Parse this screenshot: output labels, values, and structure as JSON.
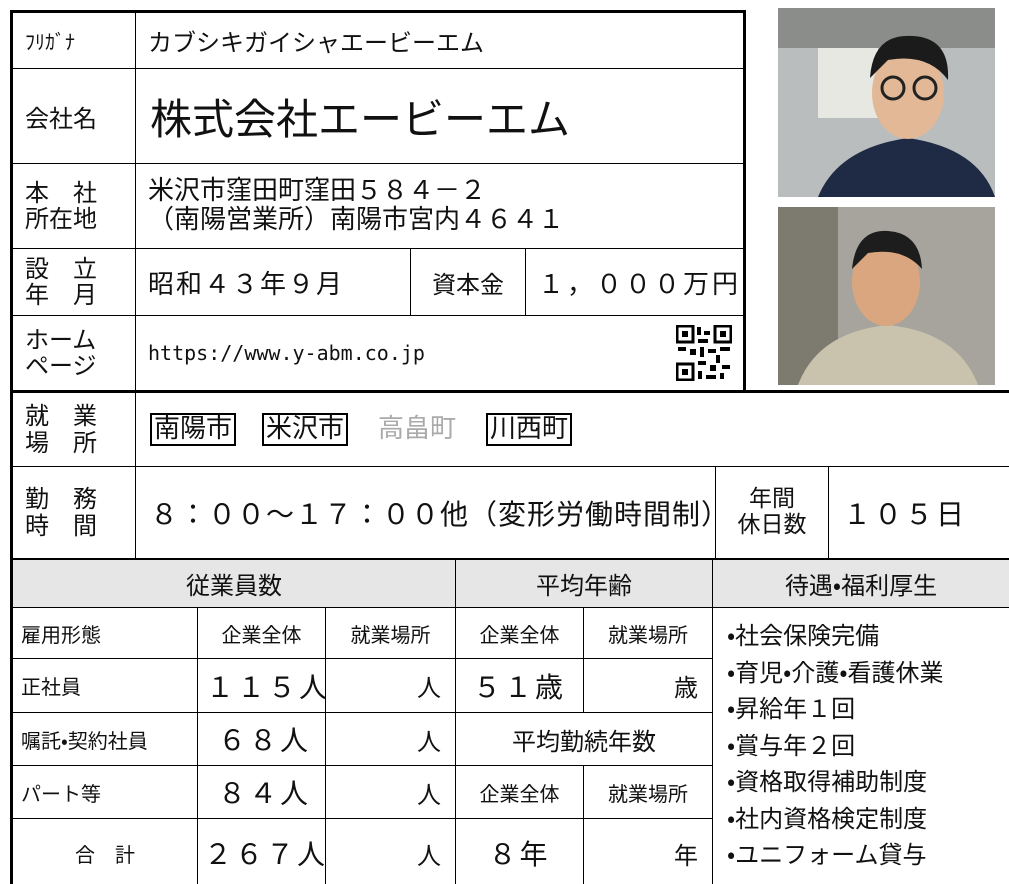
{
  "company": {
    "furigana_label": "ﾌﾘｶﾞﾅ",
    "furigana": "カブシキガイシャエービーエム",
    "name_label": "会社名",
    "name": "株式会社エービーエム",
    "address_label": [
      "本　社",
      "所在地"
    ],
    "address": [
      "米沢市窪田町窪田５８４－２",
      "（南陽営業所）南陽市宮内４６４１"
    ],
    "founded_label": [
      "設　立",
      "年　月"
    ],
    "founded": "昭和４３年９月",
    "capital_label": "資本金",
    "capital": "１，０００万円",
    "homepage_label": [
      "ホーム",
      "ページ"
    ],
    "homepage": "https://www.y-abm.co.jp"
  },
  "work_locations": {
    "label": [
      "就　業",
      "場　所"
    ],
    "items": [
      {
        "text": "南陽市",
        "boxed": true
      },
      {
        "text": "米沢市",
        "boxed": true
      },
      {
        "text": "高畠町",
        "boxed": false
      },
      {
        "text": "川西町",
        "boxed": true
      }
    ]
  },
  "work_hours": {
    "label": [
      "勤　務",
      "時　間"
    ],
    "value": "８：００～１７：００他（変形労働時間制）",
    "holidays_label": [
      "年間",
      "休日数"
    ],
    "holidays": "１０５日"
  },
  "employees": {
    "header": "従業員数",
    "columns": [
      "雇用形態",
      "企業全体",
      "就業場所"
    ],
    "rows": [
      [
        "正社員",
        "１１５人",
        "人"
      ],
      [
        "嘱託・契約社員",
        "６８人",
        "人"
      ],
      [
        "パート等",
        "８４人",
        "人"
      ],
      [
        "合　計",
        "２６７人",
        "人"
      ]
    ]
  },
  "average_age": {
    "header": "平均年齢",
    "columns": [
      "企業全体",
      "就業場所"
    ],
    "values": [
      "５１歳",
      "歳"
    ]
  },
  "average_tenure": {
    "header": "平均勤続年数",
    "columns": [
      "企業全体",
      "就業場所"
    ],
    "values": [
      "８年",
      "年"
    ]
  },
  "benefits": {
    "header": "待遇・福利厚生",
    "items": [
      "・社会保険完備",
      "・育児・介護・看護休業",
      "・昇給年１回",
      "・賞与年２回",
      "・資格取得補助制度",
      "・社内資格検定制度",
      "・ユニフォーム貸与"
    ]
  }
}
